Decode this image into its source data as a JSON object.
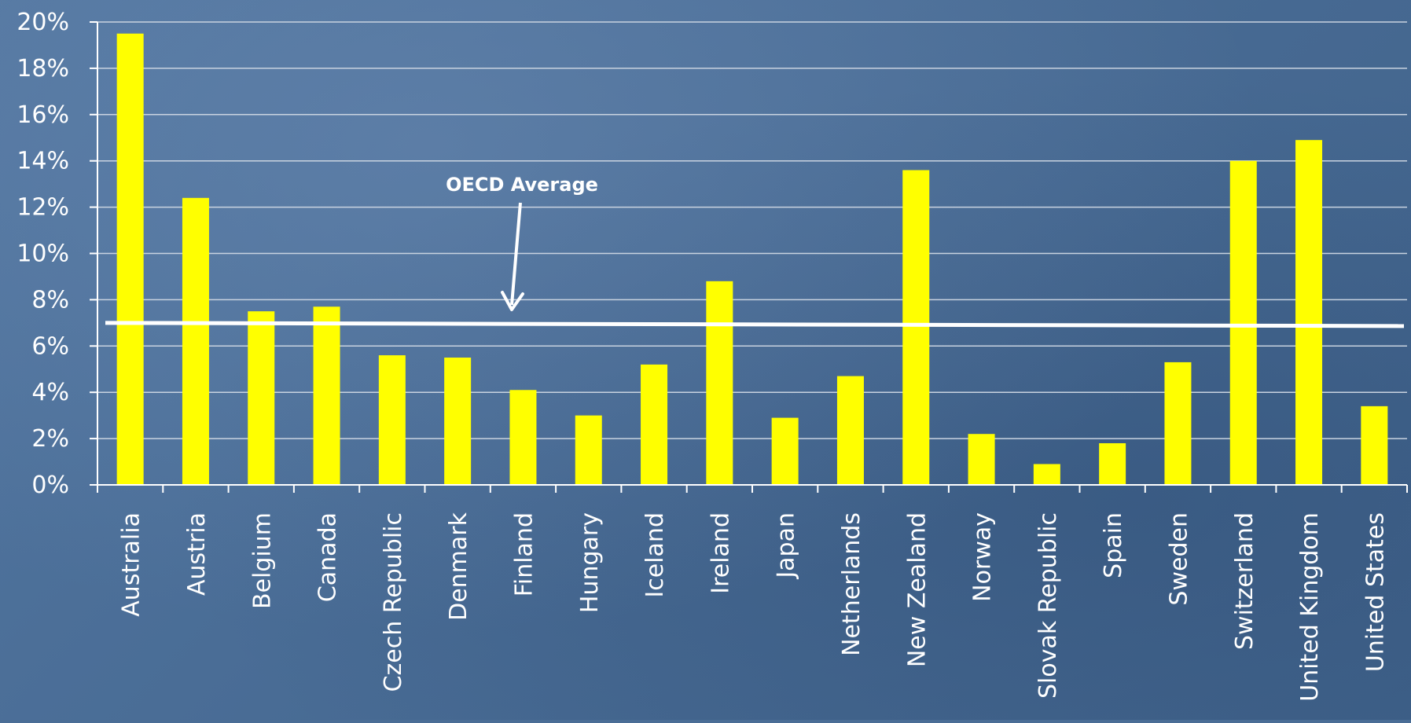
{
  "chart_data": {
    "type": "bar",
    "categories": [
      "Australia",
      "Austria",
      "Belgium",
      "Canada",
      "Czech Republic",
      "Denmark",
      "Finland",
      "Hungary",
      "Iceland",
      "Ireland",
      "Japan",
      "Netherlands",
      "New Zealand",
      "Norway",
      "Slovak Republic",
      "Spain",
      "Sweden",
      "Switzerland",
      "United Kingdom",
      "United States"
    ],
    "values": [
      19.5,
      12.4,
      7.5,
      7.7,
      5.6,
      5.5,
      4.1,
      3.0,
      5.2,
      8.8,
      2.9,
      4.7,
      13.6,
      2.2,
      0.9,
      1.8,
      5.3,
      14.0,
      14.9,
      3.4
    ],
    "ylim": [
      0,
      20
    ],
    "yticks": [
      0,
      2,
      4,
      6,
      8,
      10,
      12,
      14,
      16,
      18,
      20
    ],
    "ytick_suffix": "%",
    "grid": true,
    "bar_color": "#ffff00",
    "reference_line": {
      "label": "OECD Average",
      "value": 7.0,
      "color": "#ffffff"
    }
  }
}
